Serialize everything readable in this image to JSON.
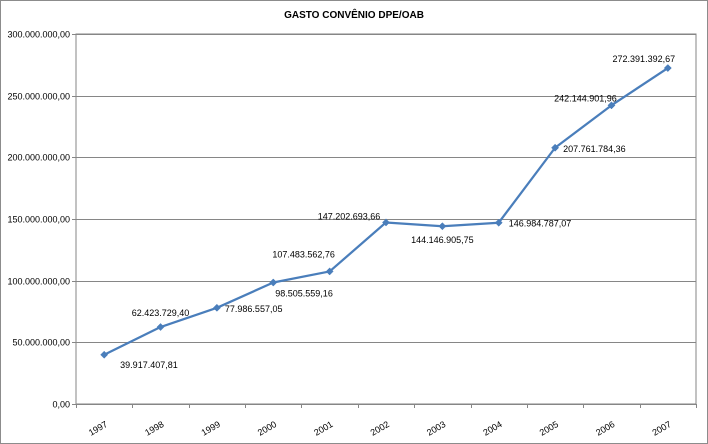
{
  "chart_data": {
    "type": "line",
    "title": "GASTO CONVÊNIO  DPE/OAB",
    "xlabel": "",
    "ylabel": "",
    "ylim": [
      0,
      300000000
    ],
    "yticks": [
      0,
      50000000,
      100000000,
      150000000,
      200000000,
      250000000,
      300000000
    ],
    "ytick_labels": [
      "0,00",
      "50.000.000,00",
      "100.000.000,00",
      "150.000.000,00",
      "200.000.000,00",
      "250.000.000,00",
      "300.000.000,00"
    ],
    "categories": [
      "1997",
      "1998",
      "1999",
      "2000",
      "2001",
      "2002",
      "2003",
      "2004",
      "2005",
      "2006",
      "2007"
    ],
    "values": [
      39917407.81,
      62423729.4,
      77986557.05,
      98505559.16,
      107483562.76,
      147202693.66,
      144146905.75,
      146984787.07,
      207761784.36,
      242144901.96,
      272391392.67
    ],
    "data_labels": [
      "39.917.407,81",
      "62.423.729,40",
      "77.986.557,05",
      "98.505.559,16",
      "107.483.562,76",
      "147.202.693,66",
      "144.146.905,75",
      "146.984.787,07",
      "207.761.784,36",
      "242.144.901,96",
      "272.391.392,67"
    ],
    "grid": true,
    "legend": false,
    "color": "#4a7ebb"
  }
}
